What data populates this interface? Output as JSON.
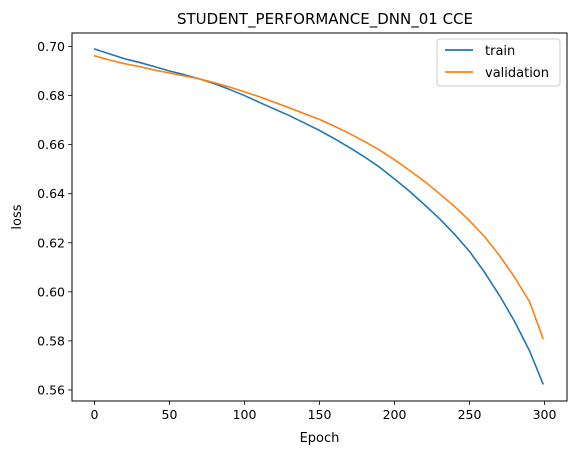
{
  "chart_data": {
    "type": "line",
    "title": "STUDENT_PERFORMANCE_DNN_01 CCE",
    "xlabel": "Epoch",
    "ylabel": "loss",
    "xlim": [
      -15,
      315
    ],
    "ylim": [
      0.5555,
      0.7055
    ],
    "xticks": [
      0,
      50,
      100,
      150,
      200,
      250,
      300
    ],
    "yticks": [
      0.56,
      0.58,
      0.6,
      0.62,
      0.64,
      0.66,
      0.68,
      0.7
    ],
    "ytick_labels": [
      "0.56",
      "0.58",
      "0.60",
      "0.62",
      "0.64",
      "0.66",
      "0.68",
      "0.70"
    ],
    "grid": false,
    "legend_position": "top-right",
    "x": [
      0,
      10,
      20,
      30,
      40,
      50,
      60,
      70,
      80,
      90,
      100,
      110,
      120,
      130,
      140,
      150,
      160,
      170,
      180,
      190,
      200,
      210,
      220,
      230,
      240,
      250,
      260,
      270,
      280,
      290,
      299
    ],
    "series": [
      {
        "name": "train",
        "color": "#1f77b4",
        "values": [
          0.699,
          0.697,
          0.695,
          0.6935,
          0.6918,
          0.69,
          0.6885,
          0.6868,
          0.6848,
          0.6825,
          0.68,
          0.6772,
          0.6745,
          0.6718,
          0.6688,
          0.6658,
          0.6624,
          0.6588,
          0.655,
          0.6508,
          0.646,
          0.641,
          0.6355,
          0.6298,
          0.6235,
          0.6165,
          0.608,
          0.5985,
          0.588,
          0.576,
          0.5625
        ]
      },
      {
        "name": "validation",
        "color": "#ff7f0e",
        "values": [
          0.6962,
          0.6945,
          0.693,
          0.6918,
          0.6904,
          0.6892,
          0.688,
          0.6868,
          0.6852,
          0.6835,
          0.6815,
          0.6795,
          0.6772,
          0.675,
          0.6726,
          0.6703,
          0.6675,
          0.6645,
          0.6613,
          0.6578,
          0.6538,
          0.6495,
          0.645,
          0.64,
          0.6348,
          0.629,
          0.6225,
          0.6148,
          0.606,
          0.596,
          0.581
        ]
      }
    ]
  }
}
